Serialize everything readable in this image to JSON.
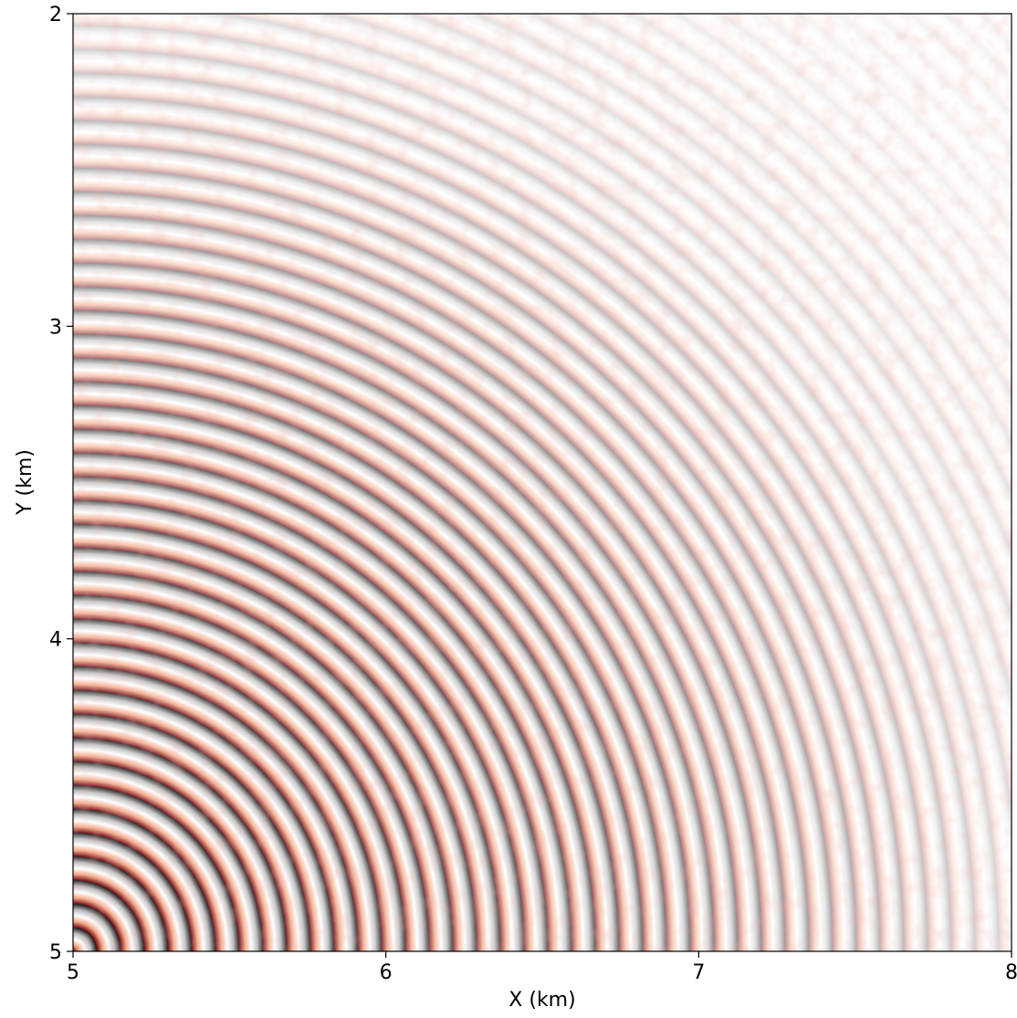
{
  "chart_data": {
    "type": "image",
    "x_label": "X (km)",
    "y_label": "Y (km)",
    "xlim": [
      5,
      8
    ],
    "xticks": [
      5,
      6,
      7,
      8
    ],
    "ylim": [
      5,
      2
    ],
    "yticks": [
      2,
      3,
      4,
      5
    ],
    "colormap": [
      "#67000d",
      "#f4a582",
      "#ffffff",
      "#bdbdbd",
      "#1a1a1a"
    ]
  }
}
